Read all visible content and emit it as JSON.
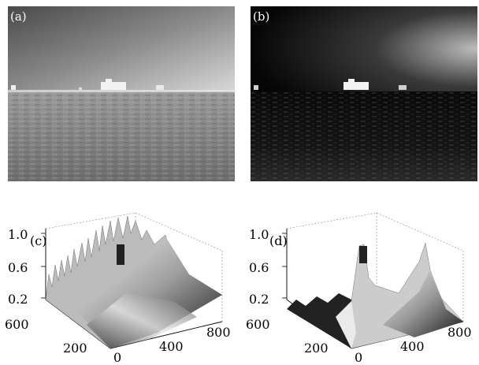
{
  "panels": {
    "a": {
      "label": "(a)"
    },
    "b": {
      "label": "(b)"
    },
    "c": {
      "label": "(c)",
      "z_ticks": [
        "1.0",
        "0.6",
        "0.2"
      ],
      "y_ticks": [
        "600",
        "200",
        "0"
      ],
      "x_ticks": [
        "400",
        "800"
      ]
    },
    "d": {
      "label": "(d)",
      "z_ticks": [
        "1.0",
        "0.6",
        "0.2"
      ],
      "y_ticks": [
        "600",
        "200",
        "0"
      ],
      "x_ticks": [
        "400",
        "800"
      ]
    }
  }
}
